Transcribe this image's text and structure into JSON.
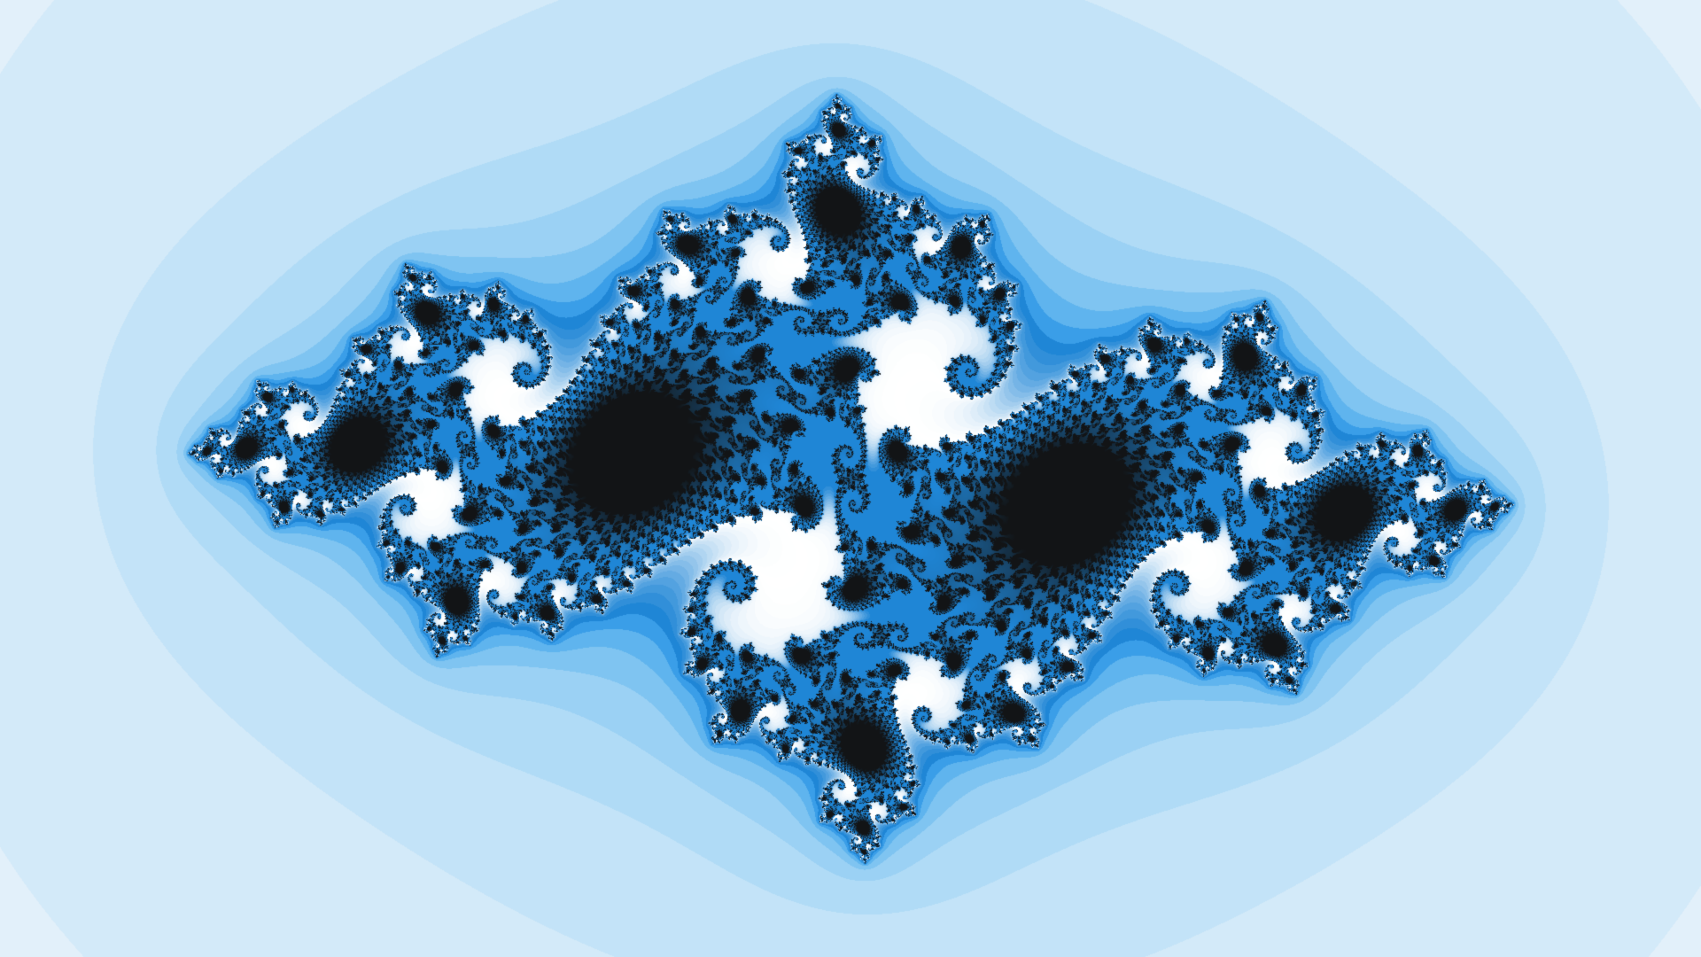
{
  "image": {
    "subject": "julia-set-fractal",
    "fractal": {
      "c_re": -0.745,
      "c_im": 0.113,
      "center_re": 0.0,
      "center_im": 0.0,
      "half_width": 1.92,
      "max_iterations": 260
    },
    "colors": {
      "background": "#e2f0fa",
      "interior": "#121416",
      "bands": [
        "#e2f0fa",
        "#d3eaf9",
        "#c3e3f8",
        "#b0dbf6",
        "#9bd1f4",
        "#7fc4f1",
        "#5fb4ee",
        "#3a9ee8",
        "#1f86d6",
        "#ffffff"
      ]
    }
  }
}
